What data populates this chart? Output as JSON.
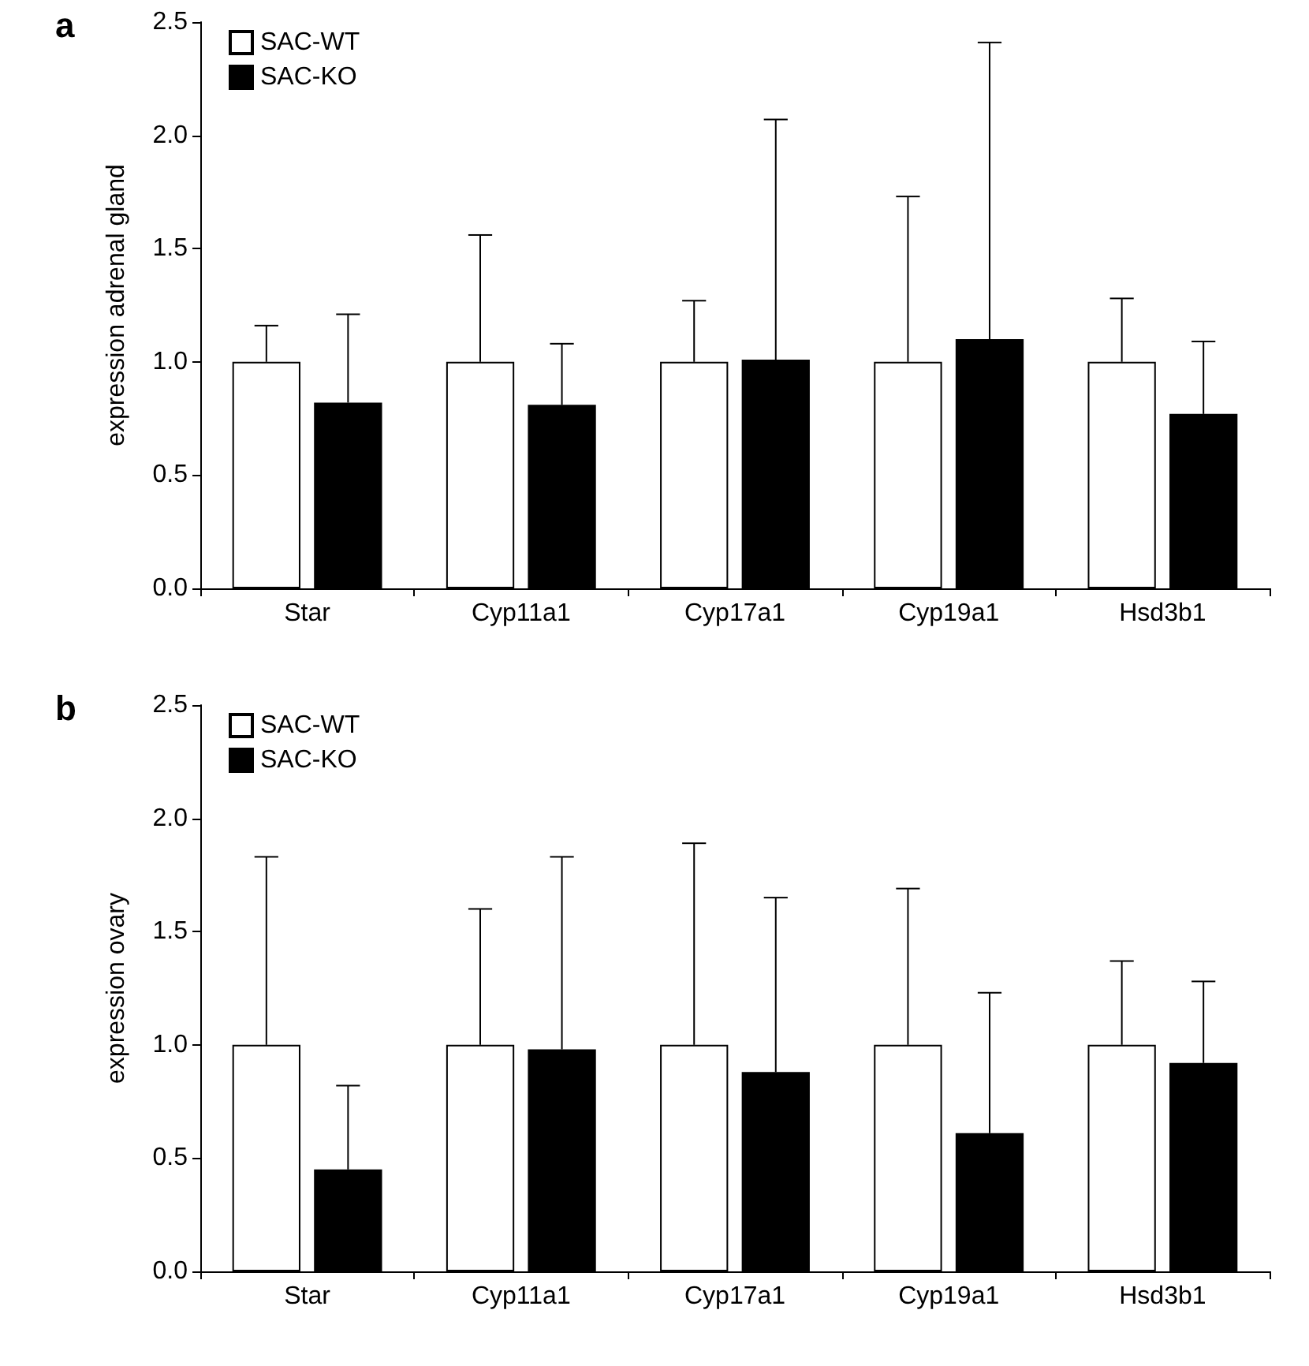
{
  "chart_data": [
    {
      "type": "bar",
      "title": "a",
      "ylabel": "expression adrenal gland",
      "categories": [
        "Star",
        "Cyp11a1",
        "Cyp17a1",
        "Cyp19a1",
        "Hsd3b1"
      ],
      "series": [
        {
          "name": "SAC-WT",
          "color": "#ffffff",
          "values": [
            1.0,
            1.0,
            1.0,
            1.0,
            1.0
          ],
          "errors": [
            [
              1.0,
              1.16
            ],
            [
              1.0,
              1.56
            ],
            [
              1.0,
              1.27
            ],
            [
              1.0,
              1.73
            ],
            [
              1.0,
              1.28
            ]
          ]
        },
        {
          "name": "SAC-KO",
          "color": "#000000",
          "values": [
            0.82,
            0.81,
            1.01,
            1.1,
            0.77
          ],
          "errors": [
            [
              0.82,
              1.21
            ],
            [
              0.81,
              1.08
            ],
            [
              1.01,
              2.07
            ],
            [
              1.1,
              2.41
            ],
            [
              0.77,
              1.09
            ]
          ]
        }
      ],
      "ylim": [
        0,
        2.5
      ],
      "yticks": [
        {
          "value": 0,
          "label": "0.0"
        },
        {
          "value": 0.5,
          "label": "0.5"
        },
        {
          "value": 1,
          "label": "1.0"
        },
        {
          "value": 1.5,
          "label": "1.5"
        },
        {
          "value": 2,
          "label": "2.0"
        },
        {
          "value": 2.5,
          "label": "2.5"
        }
      ],
      "grid": false,
      "legend": "top left"
    },
    {
      "type": "bar",
      "title": "b",
      "ylabel": "expression ovary",
      "categories": [
        "Star",
        "Cyp11a1",
        "Cyp17a1",
        "Cyp19a1",
        "Hsd3b1"
      ],
      "series": [
        {
          "name": "SAC-WT",
          "color": "#ffffff",
          "values": [
            1.0,
            1.0,
            1.0,
            1.0,
            1.0
          ],
          "errors": [
            [
              1.0,
              1.83
            ],
            [
              1.0,
              1.6
            ],
            [
              1.0,
              1.89
            ],
            [
              1.0,
              1.69
            ],
            [
              1.0,
              1.37
            ]
          ]
        },
        {
          "name": "SAC-KO",
          "color": "#000000",
          "values": [
            0.45,
            0.98,
            0.88,
            0.61,
            0.92
          ],
          "errors": [
            [
              0.45,
              0.82
            ],
            [
              0.98,
              1.83
            ],
            [
              0.88,
              1.65
            ],
            [
              0.61,
              1.23
            ],
            [
              0.92,
              1.28
            ]
          ]
        }
      ],
      "ylim": [
        0,
        2.5
      ],
      "yticks": [
        {
          "value": 0,
          "label": "0.0"
        },
        {
          "value": 0.5,
          "label": "0.5"
        },
        {
          "value": 1,
          "label": "1.0"
        },
        {
          "value": 1.5,
          "label": "1.5"
        },
        {
          "value": 2,
          "label": "2.0"
        },
        {
          "value": 2.5,
          "label": "2.5"
        }
      ],
      "grid": false,
      "legend": "top left"
    }
  ]
}
